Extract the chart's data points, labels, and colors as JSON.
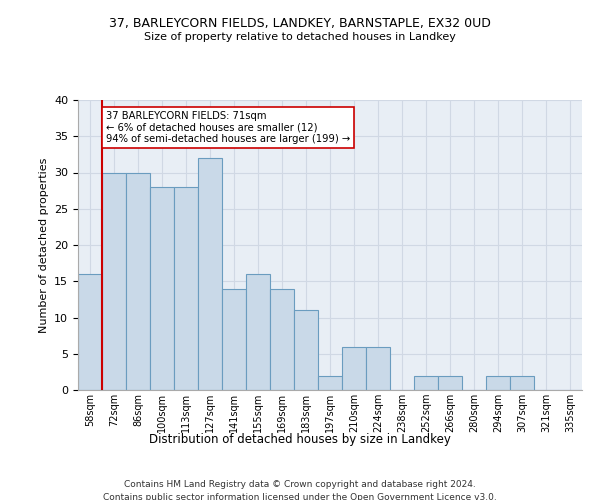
{
  "title1": "37, BARLEYCORN FIELDS, LANDKEY, BARNSTAPLE, EX32 0UD",
  "title2": "Size of property relative to detached houses in Landkey",
  "xlabel": "Distribution of detached houses by size in Landkey",
  "ylabel": "Number of detached properties",
  "categories": [
    "58sqm",
    "72sqm",
    "86sqm",
    "100sqm",
    "113sqm",
    "127sqm",
    "141sqm",
    "155sqm",
    "169sqm",
    "183sqm",
    "197sqm",
    "210sqm",
    "224sqm",
    "238sqm",
    "252sqm",
    "266sqm",
    "280sqm",
    "294sqm",
    "307sqm",
    "321sqm",
    "335sqm"
  ],
  "values": [
    16,
    30,
    30,
    28,
    28,
    32,
    14,
    16,
    14,
    11,
    2,
    6,
    6,
    0,
    2,
    2,
    0,
    2,
    2,
    0,
    0
  ],
  "bar_color": "#c9d9e8",
  "bar_edge_color": "#6a9cbf",
  "highlight_index": 1,
  "highlight_line_color": "#cc0000",
  "annotation_text": "37 BARLEYCORN FIELDS: 71sqm\n← 6% of detached houses are smaller (12)\n94% of semi-detached houses are larger (199) →",
  "annotation_box_color": "#ffffff",
  "annotation_box_edge": "#cc0000",
  "ylim": [
    0,
    40
  ],
  "yticks": [
    0,
    5,
    10,
    15,
    20,
    25,
    30,
    35,
    40
  ],
  "footer1": "Contains HM Land Registry data © Crown copyright and database right 2024.",
  "footer2": "Contains public sector information licensed under the Open Government Licence v3.0.",
  "bg_color": "#ffffff",
  "grid_color": "#d0d8e4",
  "ax_bg_color": "#e8eef5"
}
